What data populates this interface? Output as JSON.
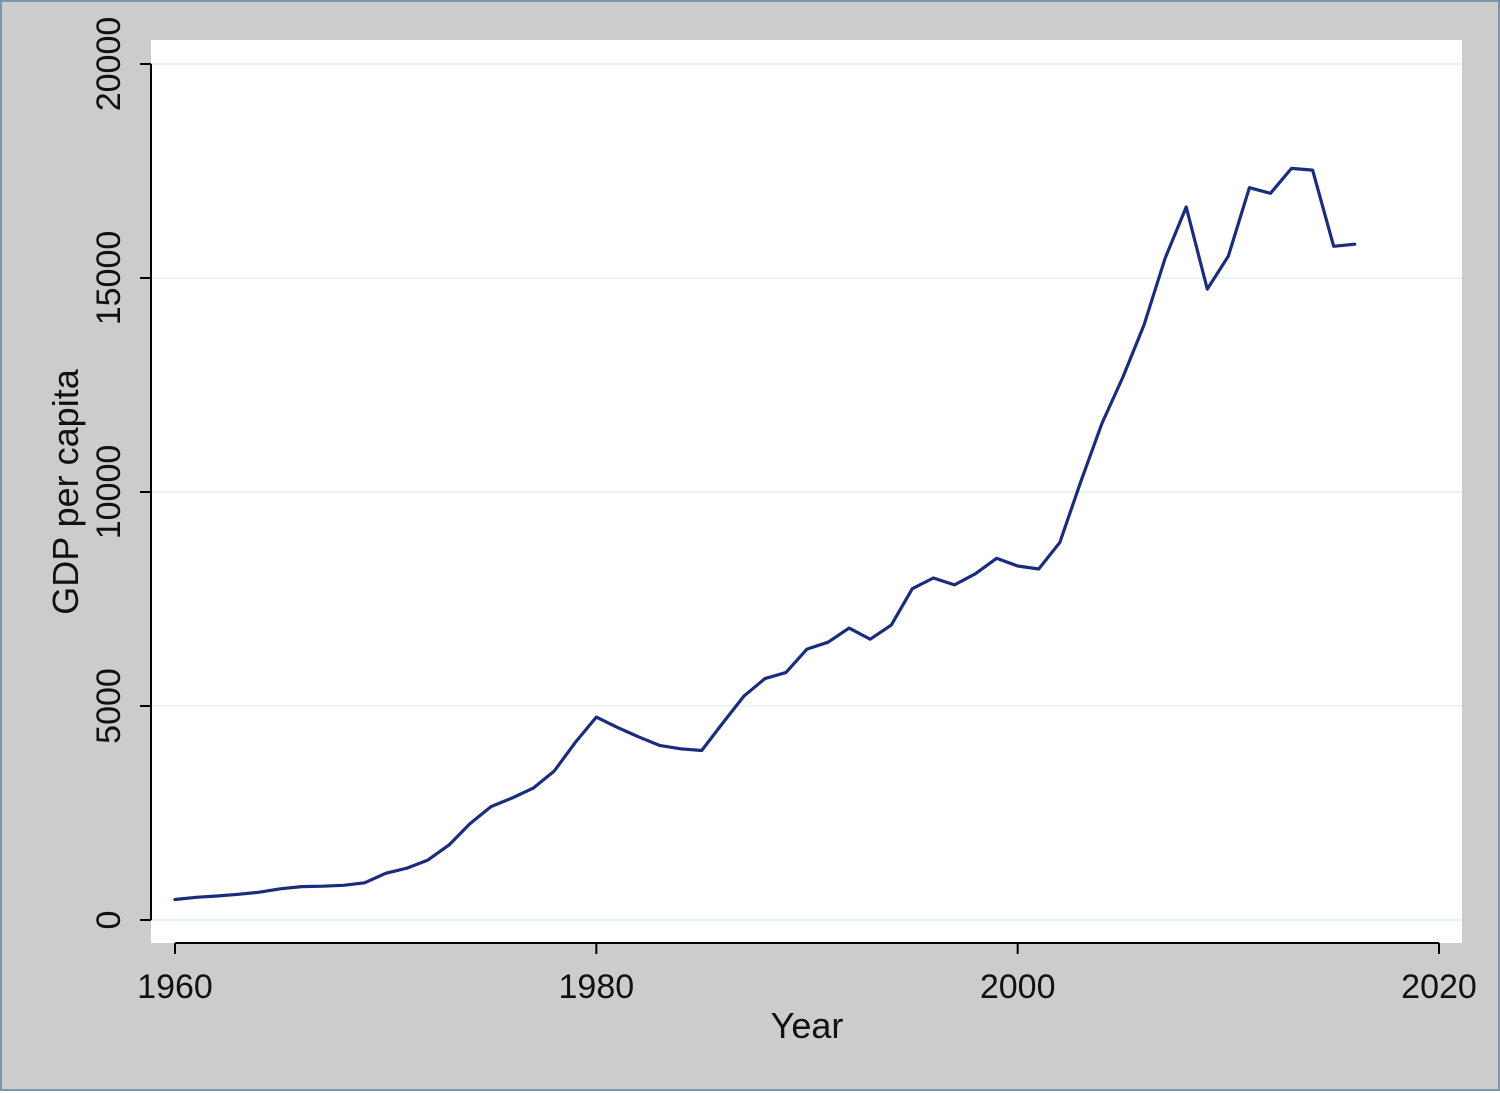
{
  "chart_data": {
    "type": "line",
    "xlabel": "Year",
    "ylabel": "GDP per capita",
    "xlim": [
      1960,
      2020
    ],
    "ylim": [
      0,
      20000
    ],
    "x_ticks": [
      1960,
      1980,
      2000,
      2020
    ],
    "y_ticks": [
      0,
      5000,
      10000,
      15000,
      20000
    ],
    "grid": true,
    "line_color": "#1a2d7a",
    "background": "#cccccc",
    "plot_background": "#ffffff",
    "series": [
      {
        "x": [
          1960,
          1961,
          1962,
          1963,
          1964,
          1965,
          1966,
          1967,
          1968,
          1969,
          1970,
          1971,
          1972,
          1973,
          1974,
          1975,
          1976,
          1977,
          1978,
          1979,
          1980,
          1981,
          1982,
          1983,
          1984,
          1985,
          1986,
          1987,
          1988,
          1989,
          1990,
          1991,
          1992,
          1993,
          1994,
          1995,
          1996,
          1997,
          1998,
          1999,
          2000,
          2001,
          2002,
          2003,
          2004,
          2005,
          2006,
          2007,
          2008,
          2009,
          2010,
          2011,
          2012,
          2013,
          2014,
          2015,
          2016
        ],
        "values": [
          480,
          530,
          560,
          600,
          650,
          730,
          780,
          790,
          810,
          870,
          1090,
          1210,
          1400,
          1750,
          2250,
          2650,
          2850,
          3080,
          3480,
          4150,
          4740,
          4500,
          4280,
          4080,
          4000,
          3960,
          4600,
          5230,
          5640,
          5780,
          6330,
          6490,
          6820,
          6560,
          6890,
          7740,
          7990,
          7830,
          8090,
          8450,
          8270,
          8200,
          8820,
          10250,
          11600,
          12690,
          13910,
          15460,
          16660,
          14740,
          15510,
          17110,
          16980,
          17560,
          17520,
          15740,
          15790
        ]
      }
    ]
  }
}
